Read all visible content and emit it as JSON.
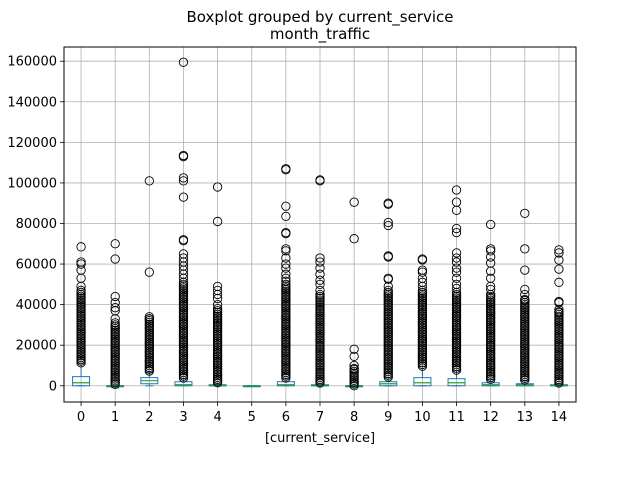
{
  "chart_data": {
    "type": "boxplot",
    "suptitle": "Boxplot grouped by current_service",
    "title": "month_traffic",
    "xlabel": "[current_service]",
    "ylabel": "",
    "categories": [
      "0",
      "1",
      "2",
      "3",
      "4",
      "5",
      "6",
      "7",
      "8",
      "9",
      "10",
      "11",
      "12",
      "13",
      "14"
    ],
    "ylim": [
      -8000,
      167000
    ],
    "yticks": [
      0,
      20000,
      40000,
      60000,
      80000,
      100000,
      120000,
      140000,
      160000
    ],
    "grid": true,
    "colors": {
      "box": "#1f77b4",
      "median": "#2ca02c",
      "flier": "#000000",
      "grid": "#b0b0b0"
    },
    "boxes": [
      {
        "category": "0",
        "q1": 0,
        "median": 1500,
        "q3": 4500,
        "whisker_low": 0,
        "whisker_high": 11000
      },
      {
        "category": "1",
        "q1": -500,
        "median": 0,
        "q3": 0,
        "whisker_low": -1000,
        "whisker_high": 0
      },
      {
        "category": "2",
        "q1": 1000,
        "median": 2500,
        "q3": 4000,
        "whisker_low": 0,
        "whisker_high": 6500
      },
      {
        "category": "3",
        "q1": 0,
        "median": 500,
        "q3": 2000,
        "whisker_low": 0,
        "whisker_high": 3500
      },
      {
        "category": "4",
        "q1": 0,
        "median": 0,
        "q3": 500,
        "whisker_low": 0,
        "whisker_high": 1000
      },
      {
        "category": "5",
        "q1": 0,
        "median": 0,
        "q3": 0,
        "whisker_low": 0,
        "whisker_high": 0
      },
      {
        "category": "6",
        "q1": 0,
        "median": 500,
        "q3": 2000,
        "whisker_low": 0,
        "whisker_high": 3500
      },
      {
        "category": "7",
        "q1": 0,
        "median": 0,
        "q3": 500,
        "whisker_low": 0,
        "whisker_high": 1000
      },
      {
        "category": "8",
        "q1": -500,
        "median": 0,
        "q3": 0,
        "whisker_low": -500,
        "whisker_high": 0
      },
      {
        "category": "9",
        "q1": 0,
        "median": 1000,
        "q3": 2000,
        "whisker_low": 0,
        "whisker_high": 4000
      },
      {
        "category": "10",
        "q1": 0,
        "median": 1500,
        "q3": 4000,
        "whisker_low": 0,
        "whisker_high": 9500
      },
      {
        "category": "11",
        "q1": 0,
        "median": 1500,
        "q3": 3500,
        "whisker_low": 0,
        "whisker_high": 7500
      },
      {
        "category": "12",
        "q1": 0,
        "median": 500,
        "q3": 1500,
        "whisker_low": 0,
        "whisker_high": 3000
      },
      {
        "category": "13",
        "q1": 0,
        "median": 500,
        "q3": 1000,
        "whisker_low": 0,
        "whisker_high": 2500
      },
      {
        "category": "14",
        "q1": 0,
        "median": 0,
        "q3": 500,
        "whisker_low": 0,
        "whisker_high": 1000
      }
    ],
    "fliers": [
      {
        "category": "0",
        "values": [
          68500,
          61000,
          60000,
          57000,
          53000,
          49000,
          47000,
          46000
        ]
      },
      {
        "category": "1",
        "values": [
          70000,
          62500,
          44000,
          41000,
          38500,
          37000,
          33000,
          31000
        ]
      },
      {
        "category": "2",
        "values": [
          101000,
          56000,
          34000,
          33000
        ]
      },
      {
        "category": "3",
        "values": [
          159500,
          113500,
          113000,
          102500,
          101000,
          93000,
          72000,
          71500,
          65000,
          63000,
          61000,
          59000,
          57000,
          55000,
          53000,
          51000
        ]
      },
      {
        "category": "4",
        "values": [
          98000,
          81000,
          49000,
          47000,
          45000,
          43000,
          40000,
          38000
        ]
      },
      {
        "category": "5",
        "values": []
      },
      {
        "category": "6",
        "values": [
          107000,
          106500,
          88500,
          83500,
          75500,
          75000,
          67500,
          66500,
          63000,
          60000,
          58000,
          55000,
          53000,
          51500
        ]
      },
      {
        "category": "7",
        "values": [
          101500,
          101000,
          63000,
          61000,
          58000,
          55000,
          52000,
          50000,
          47000,
          45000
        ]
      },
      {
        "category": "8",
        "values": [
          90500,
          72500,
          18000,
          14500,
          10000,
          8500
        ]
      },
      {
        "category": "9",
        "values": [
          90000,
          89500,
          80500,
          79000,
          64000,
          63500,
          53000,
          52500,
          49000,
          47000
        ]
      },
      {
        "category": "10",
        "values": [
          62500,
          62000,
          57000,
          56000,
          53000,
          51000,
          49000,
          47000
        ]
      },
      {
        "category": "11",
        "values": [
          96500,
          90500,
          86500,
          77500,
          75500,
          65500,
          63000,
          61000,
          58000,
          56000,
          53000,
          50000,
          48000,
          46000
        ]
      },
      {
        "category": "12",
        "values": [
          79500,
          67500,
          66500,
          63500,
          60500,
          56500,
          53000,
          49000,
          47500,
          45000
        ]
      },
      {
        "category": "13",
        "values": [
          85000,
          67500,
          57000,
          47500,
          45000,
          42500,
          42000
        ]
      },
      {
        "category": "14",
        "values": [
          67000,
          65500,
          62000,
          57500,
          51000,
          41500,
          41000,
          37500,
          36500
        ]
      }
    ],
    "flier_bands": [
      {
        "category": "0",
        "low": 11000,
        "high": 45000
      },
      {
        "category": "1",
        "low": 0,
        "high": 30000
      },
      {
        "category": "2",
        "low": 6500,
        "high": 33000
      },
      {
        "category": "3",
        "low": 3500,
        "high": 50000
      },
      {
        "category": "4",
        "low": 1000,
        "high": 37000
      },
      {
        "category": "6",
        "low": 3500,
        "high": 50000
      },
      {
        "category": "7",
        "low": 1000,
        "high": 44000
      },
      {
        "category": "8",
        "low": 0,
        "high": 8000
      },
      {
        "category": "9",
        "low": 4000,
        "high": 46000
      },
      {
        "category": "10",
        "low": 9500,
        "high": 46000
      },
      {
        "category": "11",
        "low": 7500,
        "high": 45000
      },
      {
        "category": "12",
        "low": 3000,
        "high": 44000
      },
      {
        "category": "13",
        "low": 2500,
        "high": 41000
      },
      {
        "category": "14",
        "low": 1000,
        "high": 36000
      }
    ]
  }
}
